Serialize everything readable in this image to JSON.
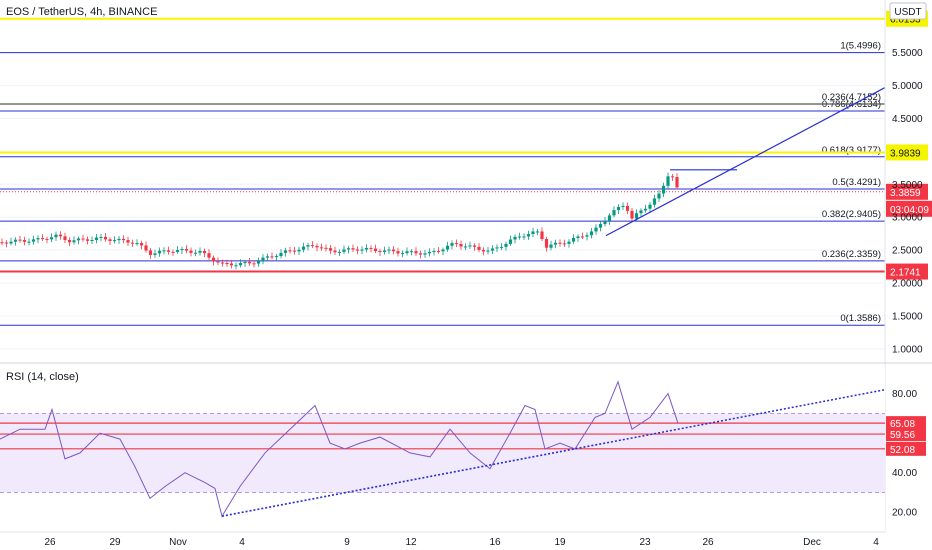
{
  "chart_data": [
    {
      "type": "candlestick",
      "title": "EOS / TetherUS, 4h, BINANCE",
      "currency": "USDT",
      "ylim": [
        0.8,
        6.3
      ],
      "y_ticks": [
        "5.5000",
        "5.0000",
        "4.5000",
        "3.5000",
        "3.0000",
        "2.5000",
        "2.0000",
        "1.5000",
        "1.0000"
      ],
      "x_ticks": [
        "26",
        "29",
        "Nov",
        "4",
        "9",
        "12",
        "16",
        "19",
        "23",
        "26",
        "Dec",
        "4"
      ],
      "last_price": {
        "label": "3.3859",
        "value": 3.3859,
        "countdown": "03:04:09",
        "color": "#f23645"
      },
      "horizontal_levels": [
        {
          "tag": "6.0153",
          "value": 6.0153,
          "color": "#f5f500"
        },
        {
          "tag": "3.9839",
          "value": 3.9839,
          "color": "#f5f500"
        },
        {
          "tag": "2.1741",
          "value": 2.1741,
          "color": "#f23645"
        }
      ],
      "grey_level": {
        "value": 4.72,
        "color": "#555555"
      },
      "fibonacci": [
        {
          "label": "1(5.4996)",
          "value": 5.4996
        },
        {
          "label": "0.786(4.6134)",
          "value": 4.6134
        },
        {
          "label": "0.618(3.9177)",
          "value": 3.9177
        },
        {
          "label": "0.5(3.4291)",
          "value": 3.4291
        },
        {
          "label": "0.382(2.9405)",
          "value": 2.9405
        },
        {
          "label": "0.236(2.3359)",
          "value": 2.3359
        },
        {
          "label": "0(1.3586)",
          "value": 1.3586
        }
      ],
      "grey_level_label": "0.236(4.7152)",
      "fib_color": "#2a2ed4",
      "price_path": [
        [
          0,
          2.62
        ],
        [
          40,
          2.66
        ],
        [
          55,
          2.72
        ],
        [
          70,
          2.64
        ],
        [
          100,
          2.68
        ],
        [
          135,
          2.62
        ],
        [
          150,
          2.45
        ],
        [
          175,
          2.5
        ],
        [
          200,
          2.47
        ],
        [
          222,
          2.28
        ],
        [
          250,
          2.3
        ],
        [
          280,
          2.45
        ],
        [
          315,
          2.58
        ],
        [
          330,
          2.48
        ],
        [
          360,
          2.52
        ],
        [
          400,
          2.47
        ],
        [
          430,
          2.45
        ],
        [
          455,
          2.6
        ],
        [
          490,
          2.48
        ],
        [
          520,
          2.72
        ],
        [
          540,
          2.78
        ],
        [
          545,
          2.55
        ],
        [
          570,
          2.64
        ],
        [
          595,
          2.8
        ],
        [
          610,
          3.05
        ],
        [
          625,
          3.2
        ],
        [
          632,
          2.98
        ],
        [
          648,
          3.18
        ],
        [
          660,
          3.35
        ],
        [
          670,
          3.72
        ],
        [
          678,
          3.39
        ]
      ],
      "trend_lines": [
        {
          "from": [
            606,
            2.72
          ],
          "to": [
            885,
            4.97
          ]
        },
        {
          "from": [
            670,
            3.72
          ],
          "to": [
            737,
            3.72
          ]
        }
      ]
    },
    {
      "type": "line",
      "title": "RSI (14, close)",
      "ylim": [
        10,
        95
      ],
      "y_ticks": [
        "80.00",
        "40.00",
        "20.00"
      ],
      "levels": [
        {
          "tag": "65.08",
          "value": 65.08
        },
        {
          "tag": "59.56",
          "value": 59.56
        },
        {
          "tag": "52.08",
          "value": 52.08
        }
      ],
      "band": [
        30,
        70
      ],
      "band_color": "#b38cf0",
      "level_color": "#f23645",
      "line_color": "#7e57c2",
      "rsi_path": [
        [
          0,
          57
        ],
        [
          20,
          62
        ],
        [
          45,
          62
        ],
        [
          52,
          72
        ],
        [
          65,
          47
        ],
        [
          80,
          50
        ],
        [
          100,
          60
        ],
        [
          120,
          57
        ],
        [
          135,
          43
        ],
        [
          150,
          27
        ],
        [
          165,
          33
        ],
        [
          185,
          40
        ],
        [
          205,
          35
        ],
        [
          215,
          32
        ],
        [
          222,
          18
        ],
        [
          240,
          33
        ],
        [
          265,
          50
        ],
        [
          290,
          62
        ],
        [
          315,
          74
        ],
        [
          330,
          55
        ],
        [
          345,
          52
        ],
        [
          360,
          55
        ],
        [
          380,
          58
        ],
        [
          410,
          50
        ],
        [
          430,
          48
        ],
        [
          450,
          62
        ],
        [
          470,
          50
        ],
        [
          490,
          42
        ],
        [
          510,
          60
        ],
        [
          525,
          74
        ],
        [
          535,
          72
        ],
        [
          545,
          52
        ],
        [
          560,
          55
        ],
        [
          575,
          52
        ],
        [
          595,
          68
        ],
        [
          605,
          70
        ],
        [
          618,
          86
        ],
        [
          632,
          62
        ],
        [
          650,
          68
        ],
        [
          668,
          80
        ],
        [
          678,
          65
        ]
      ],
      "trend_line": {
        "from": [
          222,
          18
        ],
        "to": [
          885,
          82
        ]
      }
    }
  ]
}
